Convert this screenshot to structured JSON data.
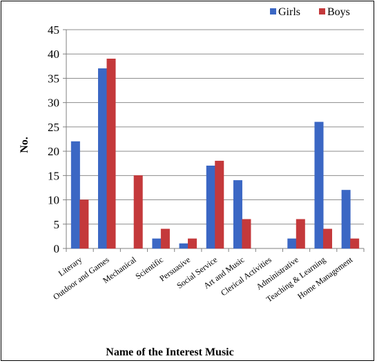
{
  "chart_data": {
    "type": "bar",
    "categories": [
      "Literary",
      "Outdoor and Games",
      "Mechanical",
      "Scientific",
      "Persuasive",
      "Social Service",
      "Art and Music",
      "Clerical Activities",
      "Administrative",
      "Teaching & Learning",
      "Home Management"
    ],
    "series": [
      {
        "name": "Girls",
        "values": [
          22,
          37,
          0,
          2,
          1,
          17,
          14,
          0,
          2,
          26,
          12
        ],
        "color": "#3b67c4"
      },
      {
        "name": "Boys",
        "values": [
          10,
          39,
          15,
          4,
          2,
          18,
          6,
          0,
          6,
          4,
          2
        ],
        "color": "#c4393b"
      }
    ],
    "title": "",
    "xlabel": "Name of the Interest Music",
    "ylabel": "No.",
    "ylim": [
      0,
      45
    ],
    "yticks": [
      0,
      5,
      10,
      15,
      20,
      25,
      30,
      35,
      40,
      45
    ],
    "grid": true,
    "legend_position": "top-right"
  }
}
